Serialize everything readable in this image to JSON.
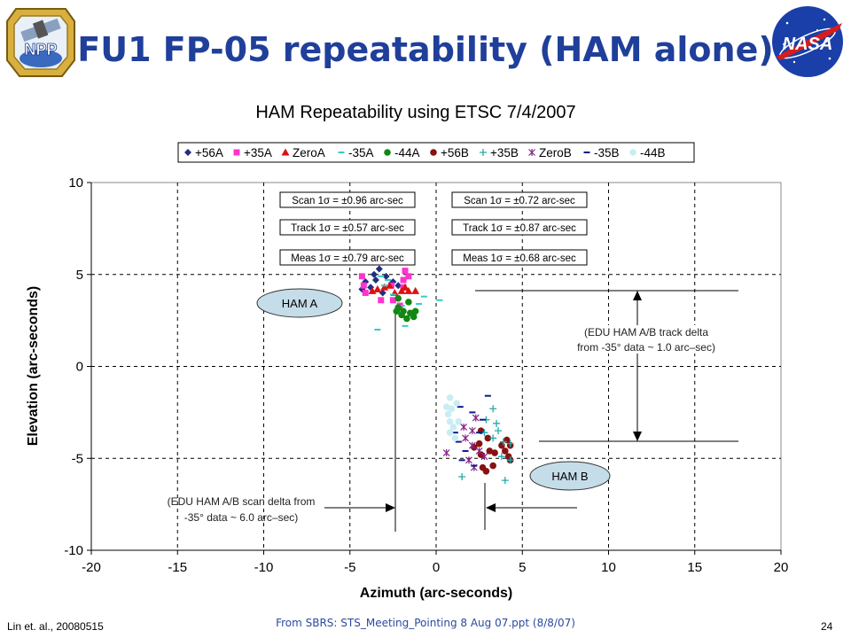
{
  "slide": {
    "title": "FU1 FP-05 repeatability (HAM alone)",
    "footer_left": "Lin et. al., 20080515",
    "footer_center": "From SBRS: STS_Meeting_Pointing  8 Aug 07.ppt (8/8/07)",
    "page_number": "24",
    "logos": {
      "left": "npp-logo",
      "left_text": "NPP",
      "right": "nasa-logo",
      "right_text": "NASA"
    }
  },
  "chart_data": {
    "type": "scatter",
    "title": "HAM Repeatability using ETSC 7/4/2007",
    "xlabel": "Azimuth (arc-seconds)",
    "ylabel": "Elevation (arc-seconds)",
    "xlim": [
      -20,
      20
    ],
    "ylim": [
      -10,
      10
    ],
    "xticks": [
      "-20",
      "-15",
      "-10",
      "-5",
      "0",
      "5",
      "10",
      "15",
      "20"
    ],
    "yticks": [
      "10",
      "5",
      "0",
      "-5",
      "-10"
    ],
    "grid": "dashed",
    "legend_position": "top",
    "colors": {
      "56A": "#1f2f80",
      "35A": "#ff33cc",
      "ZeroA": "#dd1111",
      "m35A": "#33cccc",
      "m44A": "#118811",
      "56B": "#881111",
      "35B": "#22aaaa",
      "ZeroB": "#882288",
      "m35B": "#0a1a88",
      "m44B": "#c8eef4"
    },
    "series": [
      {
        "name": "+56A",
        "marker": "diamond",
        "color": "#1f2f80",
        "points": [
          [
            -3.3,
            5.3
          ],
          [
            -3.6,
            5.0
          ],
          [
            -4.1,
            4.6
          ],
          [
            -2.9,
            4.9
          ],
          [
            -3.8,
            4.3
          ],
          [
            -2.5,
            4.6
          ],
          [
            -4.3,
            4.2
          ],
          [
            -3.1,
            4.0
          ],
          [
            -2.2,
            4.4
          ],
          [
            -3.5,
            4.7
          ]
        ]
      },
      {
        "name": "+35A",
        "marker": "square",
        "color": "#ff33cc",
        "points": [
          [
            -4.3,
            4.9
          ],
          [
            -4.2,
            4.4
          ],
          [
            -4.1,
            4.0
          ],
          [
            -1.8,
            5.2
          ],
          [
            -1.9,
            4.7
          ],
          [
            -2.6,
            4.4
          ],
          [
            -3.2,
            3.6
          ],
          [
            -2.5,
            3.6
          ],
          [
            -2.1,
            3.3
          ],
          [
            -1.6,
            4.9
          ],
          [
            -1.9,
            4.3
          ]
        ]
      },
      {
        "name": "ZeroA",
        "marker": "triangle",
        "color": "#dd1111",
        "points": [
          [
            -3.7,
            4.1
          ],
          [
            -3.4,
            4.2
          ],
          [
            -3.0,
            4.3
          ],
          [
            -2.7,
            4.4
          ],
          [
            -2.4,
            4.0
          ],
          [
            -2.0,
            4.1
          ],
          [
            -1.8,
            4.3
          ],
          [
            -1.6,
            4.1
          ],
          [
            -1.2,
            4.1
          ]
        ]
      },
      {
        "name": "-35A",
        "marker": "dash",
        "color": "#33cccc",
        "points": [
          [
            -3.2,
            4.9
          ],
          [
            -2.8,
            4.7
          ],
          [
            -3.0,
            4.4
          ],
          [
            -2.5,
            3.9
          ],
          [
            -2.0,
            3.3
          ],
          [
            -0.7,
            3.8
          ],
          [
            0.2,
            3.6
          ],
          [
            -3.4,
            2.0
          ],
          [
            -1.8,
            2.2
          ],
          [
            -1.0,
            3.4
          ]
        ]
      },
      {
        "name": "-44A",
        "marker": "circle",
        "color": "#118811",
        "points": [
          [
            -2.2,
            3.7
          ],
          [
            -1.6,
            3.5
          ],
          [
            -2.2,
            3.2
          ],
          [
            -1.9,
            3.0
          ],
          [
            -1.5,
            2.9
          ],
          [
            -2.0,
            2.8
          ],
          [
            -1.2,
            3.0
          ],
          [
            -1.7,
            2.6
          ],
          [
            -1.3,
            2.7
          ],
          [
            -2.3,
            3.0
          ]
        ]
      },
      {
        "name": "+56B",
        "marker": "circle",
        "color": "#881111",
        "points": [
          [
            2.6,
            -3.5
          ],
          [
            3.0,
            -3.9
          ],
          [
            2.5,
            -4.2
          ],
          [
            2.2,
            -4.4
          ],
          [
            3.1,
            -4.6
          ],
          [
            2.6,
            -4.8
          ],
          [
            3.4,
            -4.7
          ],
          [
            4.1,
            -4.0
          ],
          [
            3.8,
            -4.3
          ],
          [
            4.0,
            -4.6
          ],
          [
            4.3,
            -4.3
          ],
          [
            4.2,
            -4.9
          ],
          [
            4.3,
            -5.1
          ],
          [
            3.3,
            -5.4
          ],
          [
            2.9,
            -5.7
          ],
          [
            2.7,
            -5.5
          ]
        ]
      },
      {
        "name": "+35B",
        "marker": "plus",
        "color": "#22aaaa",
        "points": [
          [
            3.3,
            -2.3
          ],
          [
            2.9,
            -2.9
          ],
          [
            3.5,
            -3.1
          ],
          [
            3.6,
            -3.5
          ],
          [
            2.8,
            -3.6
          ],
          [
            3.3,
            -3.9
          ],
          [
            3.9,
            -4.1
          ],
          [
            4.3,
            -4.2
          ],
          [
            3.8,
            -4.9
          ],
          [
            4.3,
            -5.1
          ],
          [
            4.0,
            -6.2
          ],
          [
            1.5,
            -6.0
          ]
        ]
      },
      {
        "name": "ZeroB",
        "marker": "star",
        "color": "#882288",
        "points": [
          [
            2.3,
            -2.8
          ],
          [
            1.6,
            -3.3
          ],
          [
            2.1,
            -3.5
          ],
          [
            1.7,
            -3.9
          ],
          [
            2.1,
            -4.3
          ],
          [
            2.5,
            -4.6
          ],
          [
            2.8,
            -4.9
          ],
          [
            0.6,
            -4.7
          ],
          [
            1.9,
            -5.1
          ],
          [
            2.2,
            -5.5
          ]
        ]
      },
      {
        "name": "-35B",
        "marker": "dash",
        "color": "#0a1a88",
        "points": [
          [
            3.0,
            -1.6
          ],
          [
            1.4,
            -2.2
          ],
          [
            2.1,
            -2.5
          ],
          [
            2.7,
            -2.9
          ],
          [
            2.5,
            -3.6
          ],
          [
            1.1,
            -3.6
          ],
          [
            1.3,
            -4.1
          ],
          [
            1.7,
            -4.6
          ],
          [
            1.5,
            -5.1
          ],
          [
            2.2,
            -5.4
          ]
        ]
      },
      {
        "name": "-44B",
        "marker": "circle",
        "color": "#c8eef4",
        "points": [
          [
            0.8,
            -1.7
          ],
          [
            1.2,
            -2.0
          ],
          [
            0.9,
            -2.3
          ],
          [
            0.7,
            -2.6
          ],
          [
            0.8,
            -3.0
          ],
          [
            1.0,
            -3.3
          ],
          [
            0.8,
            -3.6
          ],
          [
            1.1,
            -3.9
          ],
          [
            1.3,
            -3.0
          ],
          [
            0.6,
            -2.2
          ]
        ]
      }
    ],
    "stat_boxes": [
      {
        "label": "Scan 1σ = ±0.96 arc-sec"
      },
      {
        "label": "Track 1σ = ±0.57 arc-sec"
      },
      {
        "label": "Meas 1σ = ±0.79 arc-sec"
      },
      {
        "label": "Scan 1σ = ±0.72 arc-sec"
      },
      {
        "label": "Track 1σ = ±0.87 arc-sec"
      },
      {
        "label": "Meas 1σ = ±0.68 arc-sec"
      }
    ],
    "annotations": {
      "ham_a": "HAM A",
      "ham_b": "HAM B",
      "track_delta_line1": "(EDU HAM A/B track delta",
      "track_delta_line2": "from -35° data ~ 1.0 arc–sec)",
      "scan_delta_line1": "(EDU HAM A/B scan delta from",
      "scan_delta_line2": "-35° data  ~  6.0 arc–sec)"
    }
  }
}
